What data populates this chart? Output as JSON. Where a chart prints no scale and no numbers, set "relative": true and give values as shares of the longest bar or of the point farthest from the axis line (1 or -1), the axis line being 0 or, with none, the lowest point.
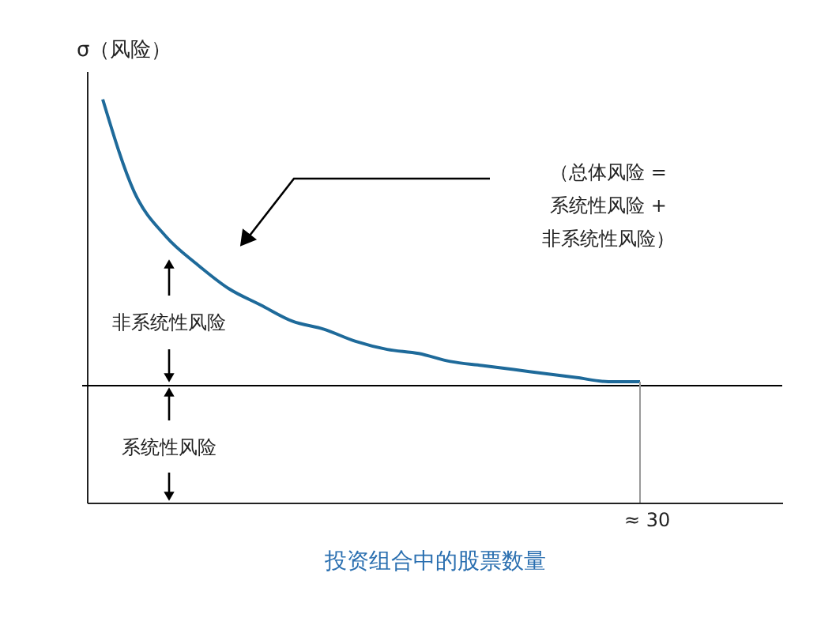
{
  "chart_data": {
    "type": "line",
    "relative": true,
    "ylabel": "σ（风险）",
    "xlabel": "投资组合中的股票数量",
    "categories": [
      null,
      null,
      null,
      null,
      null,
      null,
      null,
      null,
      null,
      null,
      null,
      null,
      null,
      null,
      null,
      null,
      null,
      null,
      null,
      null,
      null,
      null
    ],
    "series": [
      {
        "color": "#1e6a9a",
        "values": [
          1,
          0.77,
          0.66,
          0.59,
          0.53,
          0.49,
          0.45,
          0.43,
          0.4,
          0.38,
          0.37,
          0.35,
          0.34,
          0.33,
          0.32,
          0.31,
          0.3,
          0.3,
          null,
          null,
          null,
          null
        ]
      }
    ],
    "ref_lines": [
      {
        "axis": "y",
        "value": 0.29,
        "color": "#000000"
      }
    ],
    "annotations": [
      "（总体风险 =\n系统性风险 +\n非系统性风险）",
      "非系统性风险",
      "系统性风险",
      "≈ 30"
    ],
    "grid": false,
    "marker": "none",
    "tick_labels": false
  }
}
